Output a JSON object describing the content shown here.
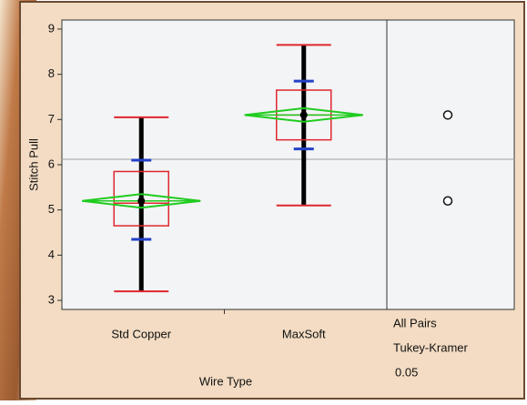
{
  "chart_data": {
    "type": "box",
    "y_label": "Stitch Pull",
    "x_label": "Wire Type",
    "categories": [
      "Std Copper",
      "MaxSoft"
    ],
    "boxes": [
      {
        "min": 3.2,
        "q1": 4.65,
        "median": 5.15,
        "q3": 5.85,
        "max": 7.05,
        "mean": 5.2,
        "mean_ci": [
          5.05,
          5.35
        ],
        "sd_lines": [
          4.35,
          6.1
        ]
      },
      {
        "min": 5.1,
        "q1": 6.55,
        "median": 7.1,
        "q3": 7.65,
        "max": 8.65,
        "mean": 7.1,
        "mean_ci": [
          6.95,
          7.25
        ],
        "sd_lines": [
          6.35,
          7.85
        ]
      }
    ],
    "grand_mean": 6.12,
    "ylim": [
      2.8,
      9.2
    ],
    "yticks": [
      3,
      4,
      5,
      6,
      7,
      8,
      9
    ],
    "colors": {
      "box": "#e0262e",
      "diamond": "#1fcc1f",
      "sd": "#2342c8",
      "whisker": "#000000",
      "grand_mean": "#a0a0a0"
    },
    "comparison_label": [
      "All Pairs",
      "Tukey-Kramer"
    ],
    "alpha": 0.05
  }
}
